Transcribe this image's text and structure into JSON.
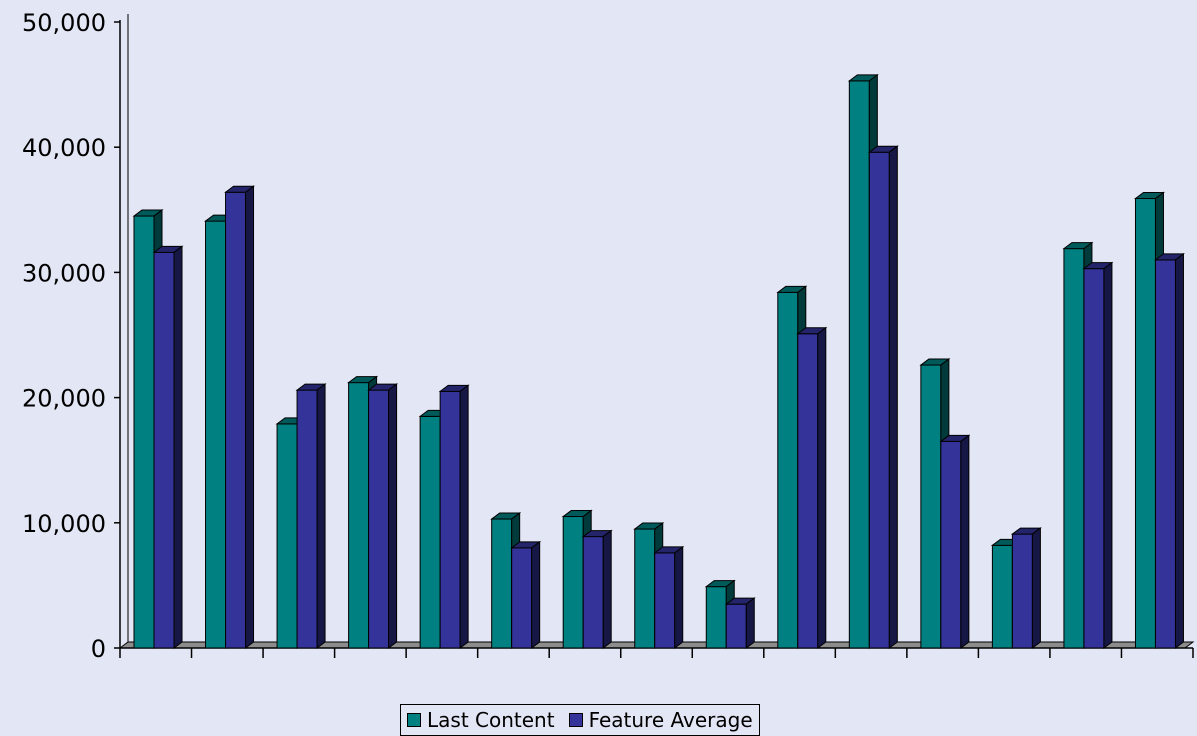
{
  "chart_data": {
    "type": "bar",
    "title": "",
    "xlabel": "",
    "ylabel": "",
    "categories": [
      "",
      "",
      "",
      "",
      "",
      "",
      "",
      "",
      "",
      "",
      "",
      "",
      "",
      "",
      ""
    ],
    "series": [
      {
        "name": "Last Content",
        "color": "#008080",
        "values": [
          34500,
          34100,
          17900,
          21200,
          18500,
          10300,
          10500,
          9500,
          4900,
          28400,
          45300,
          22600,
          8200,
          31900,
          35900
        ]
      },
      {
        "name": "Feature Average",
        "color": "#333399",
        "values": [
          31600,
          36400,
          20600,
          20600,
          20500,
          8000,
          8900,
          7600,
          3500,
          25100,
          39600,
          16500,
          9100,
          30300,
          31000
        ]
      }
    ],
    "ylim": [
      0,
      50000
    ],
    "yticks": [
      "0",
      "10,000",
      "20,000",
      "30,000",
      "40,000",
      "50,000"
    ],
    "grid": false,
    "legend_position": "bottom"
  }
}
